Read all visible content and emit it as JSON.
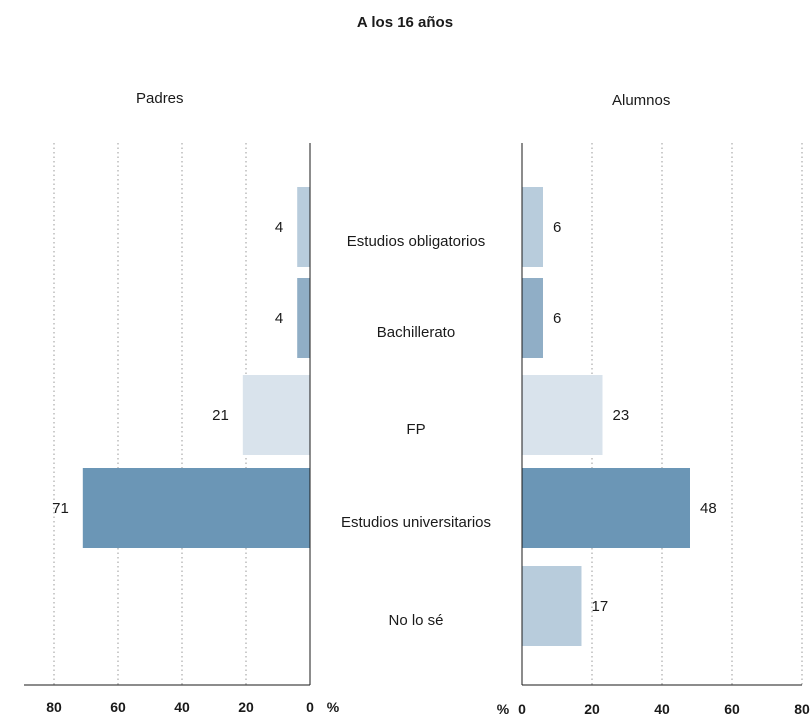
{
  "chart_data": {
    "type": "bar",
    "title": "A los 16 años",
    "categories": [
      "Estudios obligatorios",
      "Bachillerato",
      "FP",
      "Estudios universitarios",
      "No lo sé"
    ],
    "series": [
      {
        "name": "Padres",
        "values": [
          4,
          4,
          21,
          71,
          null
        ]
      },
      {
        "name": "Alumnos",
        "values": [
          6,
          6,
          23,
          48,
          17
        ]
      }
    ],
    "xlim": [
      0,
      80
    ],
    "ticks": [
      0,
      20,
      40,
      60,
      80
    ],
    "unit_label": "%",
    "grid": "vertical dotted",
    "colors": [
      "#b8ccdc",
      "#90aec6",
      "#d9e3ec",
      "#6b96b6",
      "#b8ccdc"
    ]
  }
}
